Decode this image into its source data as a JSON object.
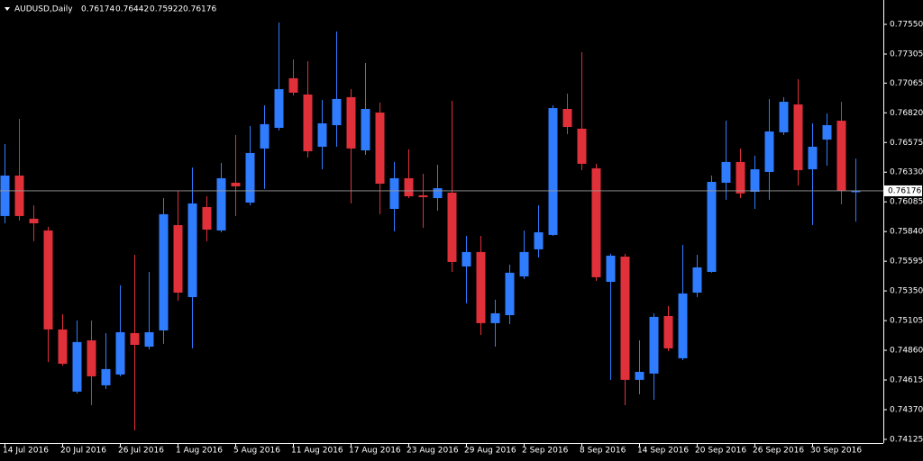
{
  "chart_data": {
    "type": "candlestick",
    "title": "AUDUSD,Daily",
    "categories": [
      "14 Jul 2016",
      null,
      null,
      null,
      "20 Jul 2016",
      null,
      null,
      null,
      "26 Jul 2016",
      null,
      null,
      null,
      "1 Aug 2016",
      null,
      null,
      null,
      "5 Aug 2016",
      null,
      null,
      null,
      "11 Aug 2016",
      null,
      null,
      null,
      "17 Aug 2016",
      null,
      null,
      null,
      "23 Aug 2016",
      null,
      null,
      null,
      "29 Aug 2016",
      null,
      null,
      null,
      "2 Sep 2016",
      null,
      null,
      null,
      "8 Sep 2016",
      null,
      null,
      null,
      "14 Sep 2016",
      null,
      null,
      null,
      "20 Sep 2016",
      null,
      null,
      null,
      "26 Sep 2016",
      null,
      null,
      null,
      "30 Sep 2016",
      null,
      null,
      null
    ],
    "open": [
      0.75968,
      0.76302,
      0.75946,
      0.75849,
      0.75032,
      0.74519,
      0.74942,
      0.74571,
      0.7466,
      0.75002,
      0.7489,
      0.75024,
      0.75893,
      0.75299,
      0.76042,
      0.75849,
      0.76243,
      0.76079,
      0.76525,
      0.76696,
      0.77105,
      0.76971,
      0.7654,
      0.76718,
      0.76949,
      0.7651,
      0.76822,
      0.76027,
      0.7628,
      0.76139,
      0.76116,
      0.76161,
      0.75552,
      0.75671,
      0.75084,
      0.7515,
      0.7547,
      0.75693,
      0.75812,
      0.76852,
      0.76689,
      0.76362,
      0.75425,
      0.75633,
      0.74616,
      0.74668,
      0.75143,
      0.74794,
      0.75336,
      0.75507,
      0.76243,
      0.76414,
      0.76168,
      0.76332,
      0.76659,
      0.76889,
      0.76354,
      0.76599,
      0.76755,
      0.76174
    ],
    "high": [
      0.76562,
      0.7677,
      0.76057,
      0.75879,
      0.75158,
      0.75106,
      0.75106,
      0.75002,
      0.75396,
      0.75648,
      0.75507,
      0.76116,
      0.76176,
      0.76369,
      0.76131,
      0.76406,
      0.76636,
      0.76711,
      0.76882,
      0.77565,
      0.77261,
      0.77246,
      0.76926,
      0.77491,
      0.77015,
      0.77231,
      0.76904,
      0.76414,
      0.76518,
      0.76317,
      0.76391,
      0.76919,
      0.75804,
      0.75804,
      0.75277,
      0.75567,
      0.75849,
      0.76057,
      0.76882,
      0.76978,
      0.7732,
      0.76399,
      0.75656,
      0.75656,
      0.74942,
      0.75165,
      0.75225,
      0.7573,
      0.75648,
      0.76302,
      0.76755,
      0.76525,
      0.76466,
      0.76934,
      0.76949,
      0.77097,
      0.76733,
      0.76815,
      0.76911,
      0.76442
    ],
    "low": [
      0.75908,
      0.75931,
      0.7576,
      0.74764,
      0.74734,
      0.74504,
      0.74407,
      0.74541,
      0.74645,
      0.74199,
      0.74868,
      0.74913,
      0.75269,
      0.74876,
      0.7576,
      0.75834,
      0.75968,
      0.76057,
      0.76191,
      0.76674,
      0.76963,
      0.76451,
      0.76354,
      0.7654,
      0.76072,
      0.76473,
      0.75983,
      0.75841,
      0.76116,
      0.75871,
      0.76012,
      0.75507,
      0.75247,
      0.74987,
      0.7489,
      0.75076,
      0.75448,
      0.75626,
      0.75804,
      0.76644,
      0.76347,
      0.75433,
      0.74616,
      0.74407,
      0.74497,
      0.74452,
      0.74853,
      0.74779,
      0.75299,
      0.755,
      0.76102,
      0.76116,
      0.76027,
      0.76102,
      0.76636,
      0.7622,
      0.75893,
      0.76384,
      0.76064,
      0.75922
    ],
    "close": [
      0.76302,
      0.75968,
      0.75908,
      0.75032,
      0.74749,
      0.74928,
      0.74645,
      0.74705,
      0.75009,
      0.74905,
      0.75009,
      0.75983,
      0.75336,
      0.76072,
      0.75856,
      0.7628,
      0.76213,
      0.76488,
      0.76726,
      0.77015,
      0.76986,
      0.76503,
      0.76733,
      0.76934,
      0.76525,
      0.76852,
      0.76235,
      0.7628,
      0.76131,
      0.76124,
      0.76198,
      0.75589,
      0.75671,
      0.75084,
      0.75165,
      0.755,
      0.75671,
      0.75834,
      0.76859,
      0.76703,
      0.76399,
      0.75463,
      0.75641,
      0.74616,
      0.74682,
      0.75136,
      0.74876,
      0.75329,
      0.75544,
      0.7625,
      0.76414,
      0.76154,
      0.76354,
      0.76666,
      0.76911,
      0.76347,
      0.7654,
      0.76718,
      0.76176,
      0.76176
    ],
    "up_color": "#2f7cff",
    "down_color": "#e0303a",
    "ylim": [
      0.74095,
      0.77751
    ],
    "yticks": [
      {
        "value": 0.7755,
        "label": "0.77550"
      },
      0.77305,
      0.77065,
      {
        "value": 0.7682,
        "label": "0.76820"
      },
      0.76575,
      {
        "value": 0.7633,
        "label": "0.76330"
      },
      0.76085,
      {
        "value": 0.7584,
        "label": "0.75840"
      },
      0.75595,
      {
        "value": 0.7535,
        "label": "0.75350"
      },
      0.75105,
      {
        "value": 0.7486,
        "label": "0.74860"
      },
      0.74615,
      {
        "value": 0.7437,
        "label": "0.74370"
      },
      0.74125
    ],
    "grid": false
  }
}
